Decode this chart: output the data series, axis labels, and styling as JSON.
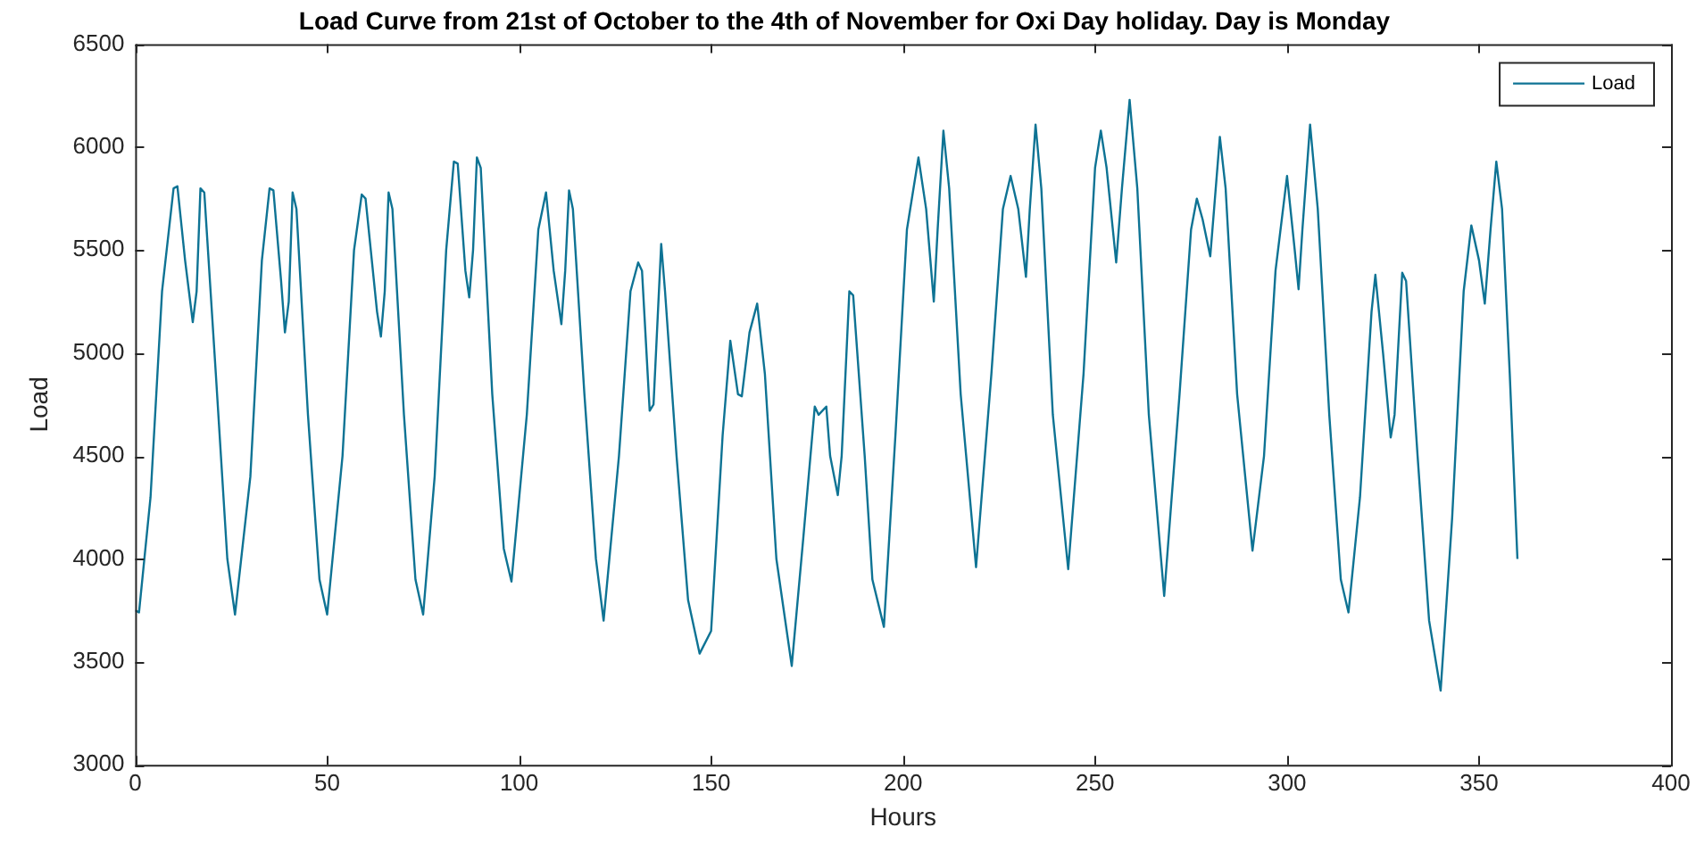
{
  "chart_data": {
    "type": "line",
    "title": "Load Curve from 21st of October to the 4th of November for Oxi Day holiday. Day is Monday",
    "xlabel": "Hours",
    "ylabel": "Load",
    "x": [
      0,
      1,
      4,
      7,
      10,
      11,
      13,
      15,
      16,
      17,
      18,
      21,
      24,
      26,
      30,
      33,
      35,
      36,
      38,
      39,
      40,
      41,
      42,
      45,
      48,
      50,
      54,
      57,
      59,
      60,
      63,
      64,
      65,
      66,
      67,
      70,
      73,
      75,
      78,
      81,
      83,
      84,
      86,
      87,
      88,
      89,
      90,
      93,
      96,
      98,
      102,
      105,
      107,
      109,
      111,
      112,
      113,
      114,
      117,
      120,
      122,
      126,
      129,
      131,
      132,
      134,
      135,
      137,
      138,
      141,
      144,
      147,
      150,
      153,
      155,
      157,
      158,
      160,
      162,
      164,
      167,
      171,
      174,
      177,
      178,
      180,
      181,
      183,
      184,
      186,
      187,
      190,
      192,
      195,
      198,
      201,
      204,
      206,
      208,
      209,
      210.5,
      212,
      215,
      219,
      223,
      226,
      228,
      230,
      232,
      233,
      234.5,
      236,
      239,
      243,
      247,
      250,
      251.5,
      253,
      255.5,
      257,
      259,
      261,
      264,
      268,
      272,
      275,
      276.5,
      278,
      280,
      281,
      282.5,
      284,
      287,
      291,
      294,
      297,
      300,
      302,
      303,
      304,
      306,
      308,
      311,
      314,
      316,
      319,
      322,
      323,
      325,
      327,
      328,
      330,
      331,
      334,
      337,
      340,
      343,
      346,
      348,
      350,
      351.5,
      353,
      354.5,
      356,
      358,
      360
    ],
    "series": [
      {
        "name": "Load",
        "color": "#0e7394",
        "values": [
          3750,
          3740,
          4300,
          5300,
          5800,
          5810,
          5450,
          5150,
          5300,
          5800,
          5780,
          4900,
          4000,
          3730,
          4400,
          5450,
          5800,
          5790,
          5350,
          5100,
          5250,
          5780,
          5700,
          4700,
          3900,
          3730,
          4500,
          5500,
          5770,
          5750,
          5200,
          5080,
          5300,
          5780,
          5700,
          4700,
          3900,
          3730,
          4400,
          5500,
          5930,
          5920,
          5400,
          5270,
          5500,
          5950,
          5900,
          4800,
          4050,
          3890,
          4700,
          5600,
          5780,
          5400,
          5140,
          5400,
          5790,
          5700,
          4800,
          4000,
          3700,
          4500,
          5300,
          5440,
          5400,
          4720,
          4750,
          5530,
          5300,
          4500,
          3800,
          3540,
          3650,
          4600,
          5060,
          4800,
          4790,
          5100,
          5240,
          4900,
          4000,
          3480,
          4100,
          4740,
          4700,
          4740,
          4500,
          4310,
          4500,
          5300,
          5280,
          4500,
          3900,
          3670,
          4600,
          5600,
          5950,
          5700,
          5250,
          5600,
          6080,
          5800,
          4800,
          3960,
          4900,
          5700,
          5860,
          5700,
          5370,
          5700,
          6110,
          5800,
          4700,
          3950,
          4900,
          5900,
          6080,
          5900,
          5440,
          5800,
          6230,
          5800,
          4700,
          3820,
          4800,
          5600,
          5750,
          5650,
          5470,
          5700,
          6050,
          5800,
          4800,
          4040,
          4500,
          5400,
          5860,
          5500,
          5310,
          5600,
          6110,
          5700,
          4700,
          3900,
          3740,
          4300,
          5200,
          5380,
          5000,
          4590,
          4700,
          5390,
          5350,
          4500,
          3700,
          3360,
          4200,
          5300,
          5620,
          5450,
          5240,
          5600,
          5930,
          5700,
          4900,
          4000
        ]
      }
    ],
    "xlim": [
      0,
      400
    ],
    "ylim": [
      3000,
      6500
    ],
    "xticks": [
      0,
      50,
      100,
      150,
      200,
      250,
      300,
      350,
      400
    ],
    "yticks": [
      3000,
      3500,
      4000,
      4500,
      5000,
      5500,
      6000,
      6500
    ],
    "legend": "top right",
    "grid": false,
    "marker": "none",
    "line_style": "solid"
  }
}
